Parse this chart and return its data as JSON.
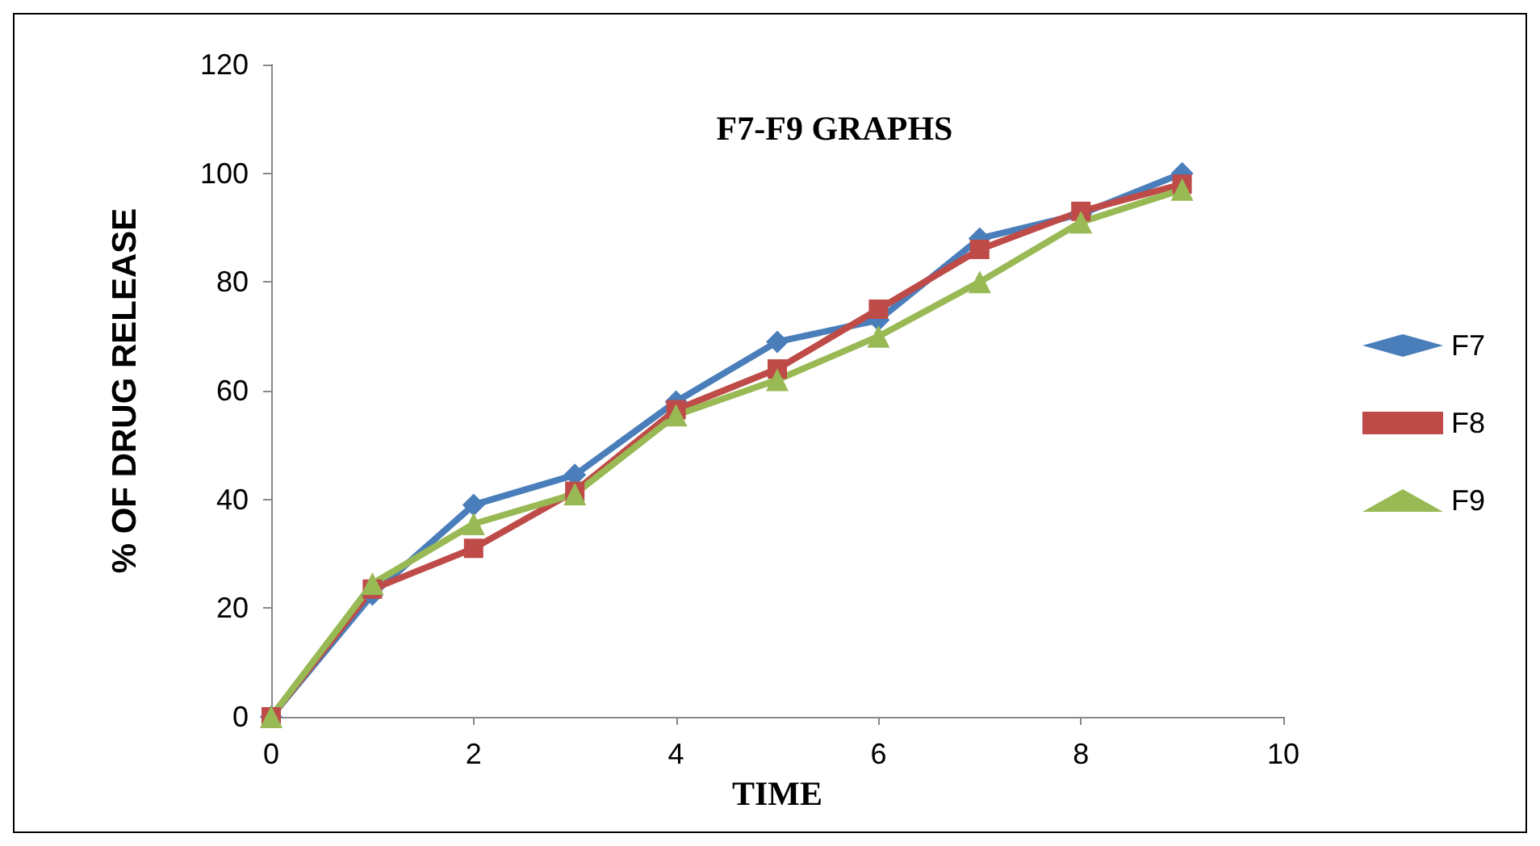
{
  "chart_data": {
    "type": "line",
    "title": "F7-F9 GRAPHS",
    "xlabel": "TIME",
    "ylabel": "% OF DRUG RELEASE",
    "x": [
      0,
      1,
      2,
      3,
      4,
      5,
      6,
      7,
      8,
      9
    ],
    "series": [
      {
        "name": "F7",
        "color": "#4a7ebb",
        "marker": "diamond",
        "values": [
          0,
          22.5,
          39,
          44.5,
          58,
          69,
          73,
          88,
          92.5,
          100
        ]
      },
      {
        "name": "F8",
        "color": "#be4b48",
        "marker": "square",
        "values": [
          0,
          23.5,
          31,
          41.5,
          56.5,
          64,
          75,
          86,
          93,
          98
        ]
      },
      {
        "name": "F9",
        "color": "#98b954",
        "marker": "triangle",
        "values": [
          0,
          24.5,
          35.5,
          41,
          55.5,
          62,
          70,
          80,
          91,
          97
        ]
      }
    ],
    "xlim": [
      0,
      10
    ],
    "xticks": [
      0,
      2,
      4,
      6,
      8,
      10
    ],
    "ylim": [
      0,
      120
    ],
    "yticks": [
      0,
      20,
      40,
      60,
      80,
      100,
      120
    ],
    "grid": false,
    "legend": "right",
    "line_style": "solid"
  }
}
